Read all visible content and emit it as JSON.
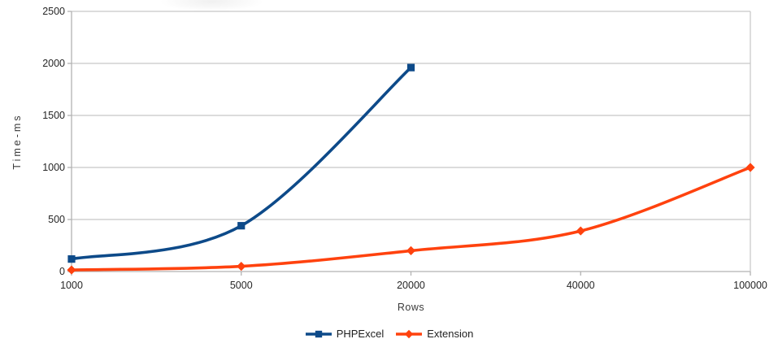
{
  "chart_data": {
    "type": "line",
    "title": "",
    "xlabel": "Rows",
    "ylabel": "Time-ms",
    "categories": [
      "1000",
      "5000",
      "20000",
      "40000",
      "100000"
    ],
    "y_ticks": [
      0,
      500,
      1000,
      1500,
      2000,
      2500
    ],
    "ylim": [
      0,
      2500
    ],
    "grid": "horizontal-only",
    "legend_position": "bottom-center",
    "smooth_lines": true,
    "series": [
      {
        "name": "PHPExcel",
        "color": "#0D4A89",
        "marker": "square",
        "values": [
          120,
          440,
          1960,
          null,
          null
        ]
      },
      {
        "name": "Extension",
        "color": "#FF420E",
        "marker": "diamond",
        "values": [
          15,
          50,
          200,
          390,
          1000
        ]
      }
    ]
  },
  "style": {
    "grid_color": "#c6c6c6",
    "axis_color": "#b2b2b2",
    "background": "#ffffff"
  }
}
